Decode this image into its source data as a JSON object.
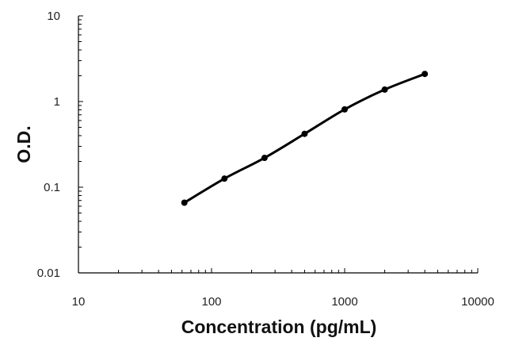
{
  "chart_data": {
    "type": "line",
    "title": "",
    "xlabel": "Concentration (pg/mL)",
    "ylabel": "O.D.",
    "x_scale": "log",
    "y_scale": "log",
    "xlim": [
      10,
      10000
    ],
    "ylim": [
      0.01,
      10
    ],
    "x_ticks": [
      "10",
      "100",
      "1000",
      "10000"
    ],
    "y_ticks": [
      "10",
      "1",
      "0.1",
      "0.01"
    ],
    "grid": false,
    "legend": "none",
    "series": [
      {
        "x": [
          62.5,
          125,
          250,
          500,
          1000,
          2000,
          4000
        ],
        "y": [
          0.066,
          0.126,
          0.22,
          0.42,
          0.81,
          1.38,
          2.1
        ]
      }
    ],
    "colors": {
      "line": "#000000",
      "axis": "#000000"
    }
  }
}
